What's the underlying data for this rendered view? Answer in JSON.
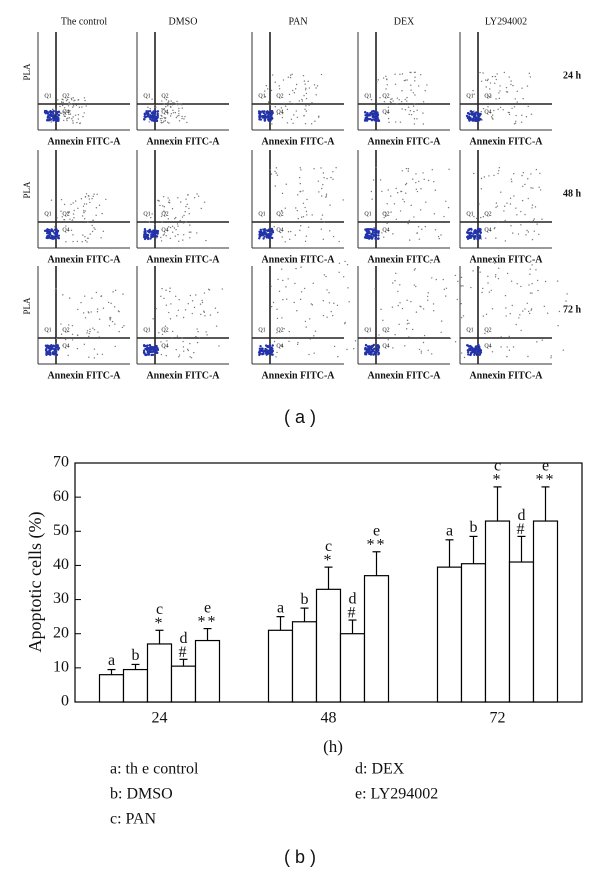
{
  "panel_a": {
    "columns": [
      "The control",
      "DMSO",
      "PAN",
      "DEX",
      "LY294002"
    ],
    "rows": [
      "24 h",
      "48 h",
      "72 h"
    ],
    "y_label": "PLA",
    "x_label": "Annexin FITC-A",
    "quadrants": [
      "Q1",
      "Q2",
      "Q4"
    ],
    "caption": "( a )"
  },
  "chart_data": {
    "type": "bar",
    "ylabel": "Apoptotic cells (%)",
    "xlabel": "(h)",
    "categories": [
      "24",
      "48",
      "72"
    ],
    "series": [
      {
        "name": "a",
        "color": "#ffffff",
        "values": [
          8,
          21,
          39.5
        ],
        "errors": [
          1.5,
          4,
          8
        ]
      },
      {
        "name": "b",
        "color": "#ffffff",
        "values": [
          9.5,
          23.5,
          40.5
        ],
        "errors": [
          1.5,
          4,
          8
        ]
      },
      {
        "name": "c",
        "color": "#ffffff",
        "values": [
          17,
          33,
          53
        ],
        "errors": [
          4,
          6.5,
          10
        ],
        "marker": "*"
      },
      {
        "name": "d",
        "color": "#ffffff",
        "values": [
          10.5,
          20,
          41
        ],
        "errors": [
          2,
          4,
          7.5
        ],
        "marker": "#"
      },
      {
        "name": "e",
        "color": "#ffffff",
        "values": [
          18,
          37,
          53
        ],
        "errors": [
          3.5,
          7,
          10
        ],
        "marker": "**"
      }
    ],
    "ylim": [
      0,
      70
    ],
    "yticks": [
      0,
      10,
      20,
      30,
      40,
      50,
      60,
      70
    ],
    "legend": [
      "a: th e control",
      "b: DMSO",
      "c: PAN",
      "d: DEX",
      "e: LY294002"
    ],
    "caption": "( b )"
  }
}
